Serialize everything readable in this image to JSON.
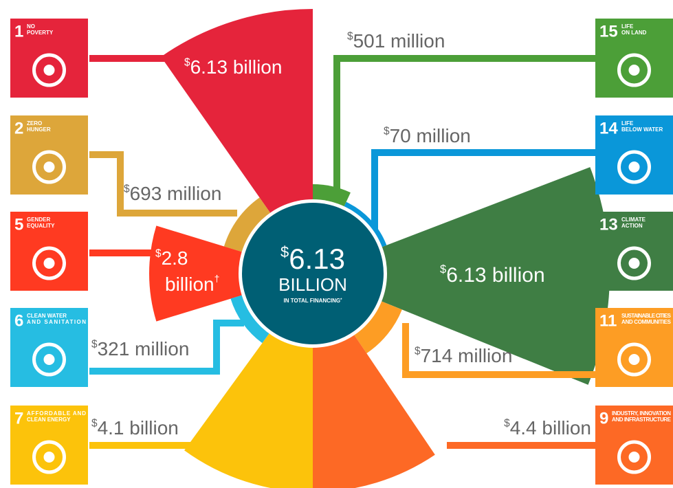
{
  "center": {
    "symbol": "$",
    "amount": "6.13",
    "unit": "BILLION",
    "caption": "IN TOTAL FINANCING",
    "mark": "*"
  },
  "goals": [
    {
      "number": "1",
      "name": [
        "NO",
        "POVERTY"
      ],
      "symbol": "$",
      "amount": "6.13 billion"
    },
    {
      "number": "2",
      "name": [
        "ZERO",
        "HUNGER"
      ],
      "symbol": "$",
      "amount": "693 million"
    },
    {
      "number": "5",
      "name": [
        "GENDER",
        "EQUALITY"
      ],
      "symbol": "$",
      "amount": "2.8",
      "unit": "billion",
      "note": "†"
    },
    {
      "number": "6",
      "name": [
        "CLEAN WATER",
        "AND SANITATION"
      ],
      "symbol": "$",
      "amount": "321 million"
    },
    {
      "number": "7",
      "name": [
        "AFFORDABLE AND",
        "CLEAN ENERGY"
      ],
      "symbol": "$",
      "amount": "4.1 billion"
    },
    {
      "number": "15",
      "name": [
        "LIFE",
        "ON LAND"
      ],
      "symbol": "$",
      "amount": "501 million"
    },
    {
      "number": "14",
      "name": [
        "LIFE",
        "BELOW WATER"
      ],
      "symbol": "$",
      "amount": "70 million"
    },
    {
      "number": "13",
      "name": [
        "CLIMATE",
        "ACTION"
      ],
      "symbol": "$",
      "amount": "6.13 billion"
    },
    {
      "number": "11",
      "name": [
        "SUSTAINABLE CITIES",
        "AND COMMUNITIES"
      ],
      "symbol": "$",
      "amount": "714 million"
    },
    {
      "number": "9",
      "name": [
        "INDUSTRY, INNOVATION",
        "AND INFRASTRUCTURE"
      ],
      "symbol": "$",
      "amount": "4.4 billion"
    }
  ]
}
